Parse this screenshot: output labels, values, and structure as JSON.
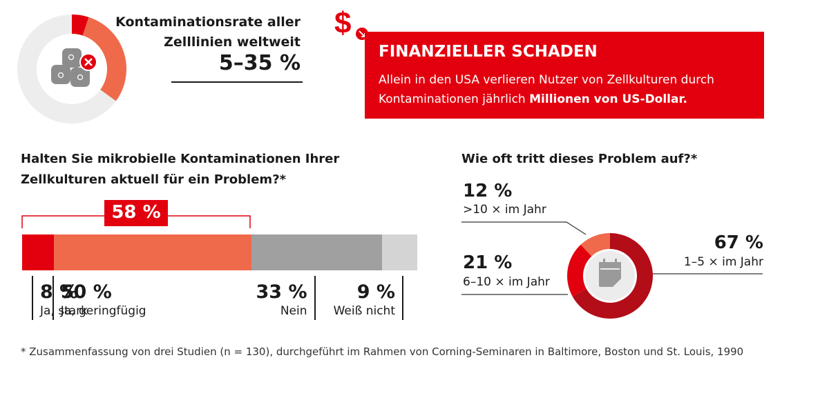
{
  "contamination": {
    "title_line1": "Kontaminationsrate aller",
    "title_line2": "Zelllinien weltweit",
    "value": "5–35 %",
    "gauge_min": 5,
    "gauge_max": 35
  },
  "financial": {
    "title": "FINANZIELLER SCHADEN",
    "text_line1": "Allein in den USA verlieren Nutzer von Zellkulturen durch",
    "text_line2_plain": "Kontaminationen jährlich ",
    "text_line2_bold": "Millionen von US-Dollar."
  },
  "question1": {
    "line1": "Halten Sie mikrobielle Kontaminationen Ihrer",
    "line2": "Zellkulturen aktuell für ein Problem?*",
    "highlight": "58 %"
  },
  "question2": {
    "title": "Wie oft tritt dieses Problem auf?*"
  },
  "chart_data": [
    {
      "type": "bar",
      "stacked": true,
      "orientation": "horizontal",
      "categories": [
        "Ja, stark",
        "Ja, geringfügig",
        "Nein",
        "Weiß nicht"
      ],
      "values": [
        8,
        50,
        33,
        9
      ],
      "labels": [
        "8 %",
        "50 %",
        "33 %",
        "9 %"
      ],
      "colors": [
        "#e2000f",
        "#ef6a4b",
        "#a0a0a0",
        "#d4d4d4"
      ]
    },
    {
      "type": "pie",
      "donut": true,
      "categories": [
        ">10 × im Jahr",
        "6–10 × im Jahr",
        "1–5 × im Jahr"
      ],
      "values": [
        12,
        21,
        67
      ],
      "labels": [
        "12 %",
        "21 %",
        "67 %"
      ],
      "colors": [
        "#ef6a4b",
        "#e2000f",
        "#b30d18"
      ]
    }
  ],
  "footnote": "* Zusammenfassung von drei Studien (n = 130), durchgeführt im Rahmen von Corning-Seminaren in Baltimore, Boston und St. Louis, 1990",
  "colors": {
    "red": "#e2000f",
    "orange": "#ef6a4b",
    "dark_red": "#b30d18",
    "gray": "#a0a0a0",
    "light_gray": "#d4d4d4"
  }
}
